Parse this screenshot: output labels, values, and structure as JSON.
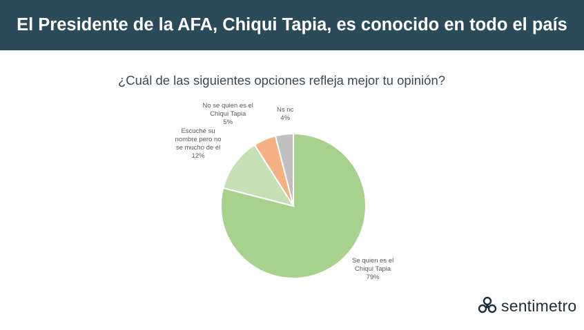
{
  "header": {
    "title": "El Presidente de la AFA, Chiqui Tapia, es conocido en todo el país"
  },
  "question": "¿Cuál de las siguientes opciones refleja mejor tu opinión?",
  "brand": {
    "name": "sentimetro",
    "icon": "sentimetro-logo-icon"
  },
  "colors": {
    "header_bg": "#2b4a5a"
  },
  "chart_data": {
    "type": "pie",
    "title": "¿Cuál de las siguientes opciones refleja mejor tu opinión?",
    "slices": [
      {
        "lines": [
          "Se quien es el",
          "Chiqui Tapia"
        ],
        "value": 79,
        "pct": "79%",
        "color": "#a9d18e"
      },
      {
        "lines": [
          "Escuché su",
          "nombre pero no",
          "se mucho de él"
        ],
        "value": 12,
        "pct": "12%",
        "color": "#c5e0b4"
      },
      {
        "lines": [
          "No se quien es el",
          "Chiqui Tapia"
        ],
        "value": 5,
        "pct": "5%",
        "color": "#f4b183"
      },
      {
        "lines": [
          "Ns nc"
        ],
        "value": 4,
        "pct": "4%",
        "color": "#bfbfbf"
      }
    ]
  }
}
